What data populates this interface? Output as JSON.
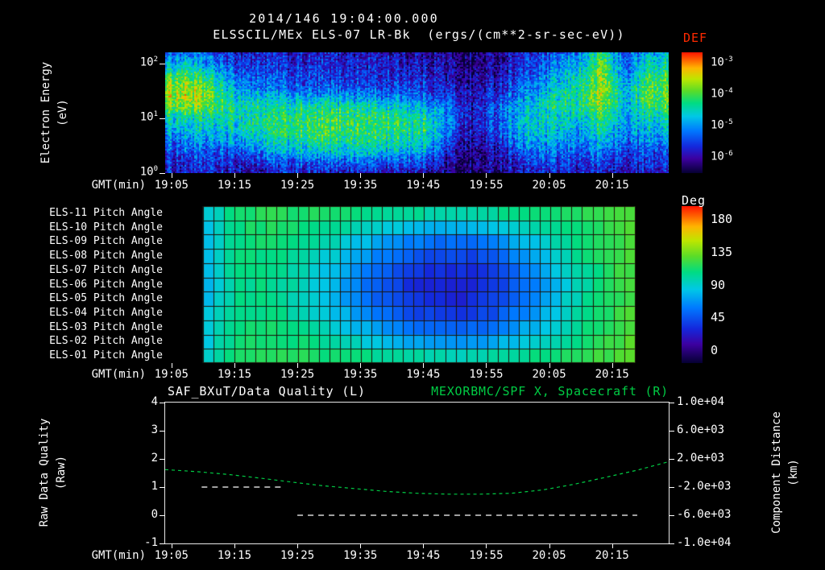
{
  "header": {
    "date_title": "2014/146 19:04:00.000",
    "instrument_title": "ELSSCIL/MEx ELS-07 LR-Bk",
    "units_title": "(ergs/(cm**2-sr-sec-eV))"
  },
  "time_axis": {
    "label": "GMT(min)",
    "start_label": "19:04",
    "span_min": 80,
    "ticks": [
      {
        "t": 1,
        "label": "19:05"
      },
      {
        "t": 11,
        "label": "19:15"
      },
      {
        "t": 21,
        "label": "19:25"
      },
      {
        "t": 31,
        "label": "19:35"
      },
      {
        "t": 41,
        "label": "19:45"
      },
      {
        "t": 51,
        "label": "19:55"
      },
      {
        "t": 61,
        "label": "20:05"
      },
      {
        "t": 71,
        "label": "20:15"
      }
    ]
  },
  "colors": {
    "background": "#000000",
    "text": "#ffffff",
    "def_label": "#ff2a00",
    "green_series": "#00cc44",
    "quality_series": "#ffffff",
    "pitch_grid_line": "#1c1208"
  },
  "colormap": [
    [
      0.0,
      5,
      0,
      50
    ],
    [
      0.12,
      60,
      0,
      160
    ],
    [
      0.22,
      20,
      40,
      220
    ],
    [
      0.35,
      0,
      120,
      255
    ],
    [
      0.47,
      0,
      200,
      230
    ],
    [
      0.58,
      0,
      220,
      130
    ],
    [
      0.68,
      90,
      220,
      40
    ],
    [
      0.78,
      190,
      230,
      0
    ],
    [
      0.87,
      255,
      180,
      0
    ],
    [
      1.0,
      255,
      20,
      0
    ]
  ],
  "chart_data": [
    {
      "type": "heatmap",
      "id": "electron-energy-spectrogram",
      "title": "ELSSCIL/MEx ELS-07 LR-Bk",
      "units": "(ergs/(cm**2-sr-sec-eV))",
      "xlabel": "GMT(min)",
      "ylabel": [
        "Electron Energy",
        "(eV)"
      ],
      "y_scale": "log",
      "log_energy_max": 2.2,
      "y_ticks": [
        {
          "log": 2,
          "exp": "2"
        },
        {
          "log": 1,
          "exp": "1"
        },
        {
          "log": 0,
          "exp": "0"
        }
      ],
      "colorbar": {
        "title": "DEF",
        "tick_exponents": [
          "-3",
          "-4",
          "-5",
          "-6"
        ]
      },
      "vmin": -6.5,
      "vmax": -3.0,
      "n_time": 24,
      "n_energy": 12,
      "values_note": "log10 flux, rows bottom(1 eV) to top(~160 eV), 24 time bins over 80 min from 19:04",
      "values": [
        [
          -5.9,
          -5.9,
          -5.8,
          -5.9,
          -6.0,
          -5.9,
          -5.8,
          -5.9,
          -5.9,
          -5.8,
          -5.9,
          -5.9,
          -6.0,
          -6.2,
          -6.3,
          -6.2,
          -6.0,
          -5.9,
          -5.9,
          -5.8,
          -5.9,
          -6.0,
          -5.9,
          -5.9
        ],
        [
          -5.8,
          -5.7,
          -5.7,
          -5.8,
          -5.8,
          -5.6,
          -5.5,
          -5.5,
          -5.4,
          -5.4,
          -5.5,
          -5.5,
          -5.6,
          -6.1,
          -6.3,
          -6.1,
          -5.8,
          -5.6,
          -5.7,
          -5.7,
          -5.6,
          -5.8,
          -5.7,
          -5.7
        ],
        [
          -5.6,
          -5.5,
          -5.5,
          -5.5,
          -5.3,
          -5.1,
          -5.0,
          -4.9,
          -4.8,
          -4.8,
          -4.9,
          -4.9,
          -5.0,
          -5.9,
          -6.2,
          -6.0,
          -5.5,
          -5.3,
          -5.4,
          -5.5,
          -5.3,
          -5.6,
          -5.5,
          -5.5
        ],
        [
          -5.3,
          -5.2,
          -5.2,
          -5.1,
          -4.9,
          -4.7,
          -4.6,
          -4.5,
          -4.5,
          -4.5,
          -4.5,
          -4.6,
          -4.7,
          -5.6,
          -6.1,
          -5.8,
          -5.2,
          -5.0,
          -5.1,
          -5.2,
          -4.9,
          -5.4,
          -5.2,
          -5.2
        ],
        [
          -5.0,
          -4.9,
          -4.9,
          -4.8,
          -4.6,
          -4.5,
          -4.4,
          -4.3,
          -4.3,
          -4.3,
          -4.4,
          -4.4,
          -4.5,
          -5.4,
          -6.0,
          -5.6,
          -5.0,
          -4.8,
          -4.9,
          -5.0,
          -4.6,
          -5.2,
          -5.0,
          -4.9
        ],
        [
          -4.8,
          -4.7,
          -4.7,
          -4.7,
          -4.6,
          -4.5,
          -4.4,
          -4.4,
          -4.3,
          -4.4,
          -4.4,
          -4.5,
          -4.6,
          -5.3,
          -5.9,
          -5.5,
          -5.0,
          -4.8,
          -4.8,
          -4.8,
          -4.4,
          -5.1,
          -4.7,
          -4.6
        ],
        [
          -4.1,
          -4.0,
          -4.3,
          -4.6,
          -4.6,
          -4.6,
          -4.6,
          -4.6,
          -4.5,
          -4.6,
          -4.7,
          -4.8,
          -4.9,
          -5.4,
          -5.9,
          -5.5,
          -5.1,
          -4.8,
          -4.6,
          -4.5,
          -4.1,
          -5.0,
          -4.4,
          -4.3
        ],
        [
          -3.9,
          -3.8,
          -4.1,
          -4.7,
          -4.9,
          -5.0,
          -5.1,
          -5.2,
          -5.1,
          -5.2,
          -5.3,
          -5.3,
          -5.4,
          -5.7,
          -6.0,
          -5.7,
          -5.3,
          -5.0,
          -4.7,
          -4.4,
          -3.9,
          -5.0,
          -4.2,
          -4.1
        ],
        [
          -4.0,
          -3.9,
          -4.3,
          -5.0,
          -5.3,
          -5.4,
          -5.5,
          -5.6,
          -5.5,
          -5.6,
          -5.6,
          -5.6,
          -5.7,
          -5.9,
          -6.1,
          -5.9,
          -5.5,
          -5.2,
          -4.9,
          -4.5,
          -3.9,
          -5.1,
          -4.3,
          -4.2
        ],
        [
          -4.4,
          -4.3,
          -4.7,
          -5.3,
          -5.5,
          -5.6,
          -5.7,
          -5.7,
          -5.7,
          -5.7,
          -5.8,
          -5.8,
          -5.8,
          -6.0,
          -6.2,
          -6.0,
          -5.7,
          -5.4,
          -5.1,
          -4.7,
          -4.0,
          -5.3,
          -4.5,
          -4.4
        ],
        [
          -5.0,
          -4.9,
          -5.2,
          -5.6,
          -5.7,
          -5.7,
          -5.8,
          -5.8,
          -5.8,
          -5.8,
          -5.8,
          -5.9,
          -5.9,
          -6.1,
          -6.3,
          -6.1,
          -5.8,
          -5.6,
          -5.3,
          -5.0,
          -4.2,
          -5.5,
          -4.8,
          -4.7
        ],
        [
          -5.4,
          -5.3,
          -5.5,
          -5.8,
          -5.8,
          -5.8,
          -5.9,
          -5.9,
          -5.9,
          -5.9,
          -5.9,
          -6.0,
          -6.0,
          -6.2,
          -6.3,
          -6.2,
          -5.9,
          -5.7,
          -5.5,
          -5.2,
          -4.4,
          -5.6,
          -5.0,
          -5.0
        ]
      ]
    },
    {
      "type": "heatmap",
      "id": "pitch-angle-panel",
      "xlabel": "GMT(min)",
      "rows": [
        "ELS-11 Pitch Angle",
        "ELS-10 Pitch Angle",
        "ELS-09 Pitch Angle",
        "ELS-08 Pitch Angle",
        "ELS-07 Pitch Angle",
        "ELS-06 Pitch Angle",
        "ELS-05 Pitch Angle",
        "ELS-04 Pitch Angle",
        "ELS-03 Pitch Angle",
        "ELS-02 Pitch Angle",
        "ELS-01 Pitch Angle"
      ],
      "colorbar": {
        "title": "Deg",
        "tick_labels": [
          "180",
          "135",
          "90",
          "45",
          "0"
        ]
      },
      "units": "degrees",
      "t_start": 6,
      "t_end": 74.6,
      "n_cols": 41,
      "n_samples": 14,
      "values_note": "pitch angle in degrees, rows ELS-11(top) to ELS-01(bottom), 14 time samples from 19:10 to 20:18",
      "values": [
        [
          85,
          108,
          112,
          110,
          108,
          105,
          100,
          98,
          98,
          102,
          106,
          110,
          115,
          120
        ],
        [
          82,
          106,
          110,
          106,
          100,
          92,
          84,
          78,
          78,
          86,
          96,
          106,
          114,
          122
        ],
        [
          80,
          105,
          108,
          102,
          92,
          80,
          68,
          60,
          60,
          70,
          85,
          100,
          112,
          122
        ],
        [
          80,
          104,
          106,
          98,
          86,
          70,
          56,
          48,
          48,
          58,
          76,
          96,
          110,
          122
        ],
        [
          78,
          103,
          105,
          95,
          80,
          62,
          48,
          40,
          40,
          50,
          70,
          92,
          108,
          120
        ],
        [
          78,
          102,
          104,
          93,
          77,
          58,
          44,
          36,
          36,
          46,
          66,
          90,
          107,
          120
        ],
        [
          78,
          102,
          104,
          94,
          78,
          60,
          46,
          38,
          38,
          48,
          68,
          91,
          108,
          120
        ],
        [
          80,
          103,
          105,
          96,
          82,
          66,
          52,
          44,
          44,
          54,
          72,
          94,
          109,
          121
        ],
        [
          82,
          105,
          107,
          100,
          89,
          75,
          62,
          55,
          55,
          64,
          80,
          98,
          111,
          122
        ],
        [
          84,
          107,
          110,
          105,
          97,
          87,
          77,
          71,
          71,
          78,
          90,
          103,
          113,
          123
        ],
        [
          86,
          109,
          112,
          110,
          106,
          102,
          98,
          95,
          95,
          99,
          105,
          111,
          116,
          124
        ]
      ]
    },
    {
      "type": "line",
      "id": "quality-and-distance",
      "title_left": "SAF_BXuT/Data Quality (L)",
      "title_right": "MEXORBMC/SPF X, Spacecraft (R)",
      "xlabel": "GMT(min)",
      "ylabel_left": [
        "Raw Data Quality",
        "(Raw)"
      ],
      "ylabel_right": [
        "Component Distance",
        "(km)"
      ],
      "yticks_left": [
        "4",
        "3",
        "2",
        "1",
        "0",
        "-1"
      ],
      "yticks_right": [
        "1.0e+04",
        "6.0e+03",
        "2.0e+03",
        "-2.0e+03",
        "-6.0e+03",
        "-1.0e+04"
      ],
      "ylim_left": [
        -1,
        4
      ],
      "ylim_right": [
        -10000,
        10000
      ],
      "series": [
        {
          "name": "SAF_BXuT/Data Quality",
          "axis": "left",
          "color": "#ffffff",
          "style": "dashed",
          "segments": [
            {
              "t0": 5.8,
              "t1": 19.0,
              "value": 1
            },
            {
              "t0": 21.0,
              "t1": 75.0,
              "value": 0
            }
          ]
        },
        {
          "name": "MEXORBMC/SPF X Spacecraft",
          "axis": "right",
          "color": "#00cc44",
          "style": "dashed",
          "t": [
            0,
            5,
            10,
            15,
            20,
            25,
            30,
            35,
            40,
            45,
            50,
            55,
            60,
            65,
            70,
            75,
            80
          ],
          "km": [
            480,
            200,
            -200,
            -720,
            -1280,
            -1800,
            -2200,
            -2600,
            -2880,
            -3000,
            -3000,
            -2880,
            -2400,
            -1600,
            -600,
            400,
            1600
          ]
        }
      ]
    }
  ]
}
